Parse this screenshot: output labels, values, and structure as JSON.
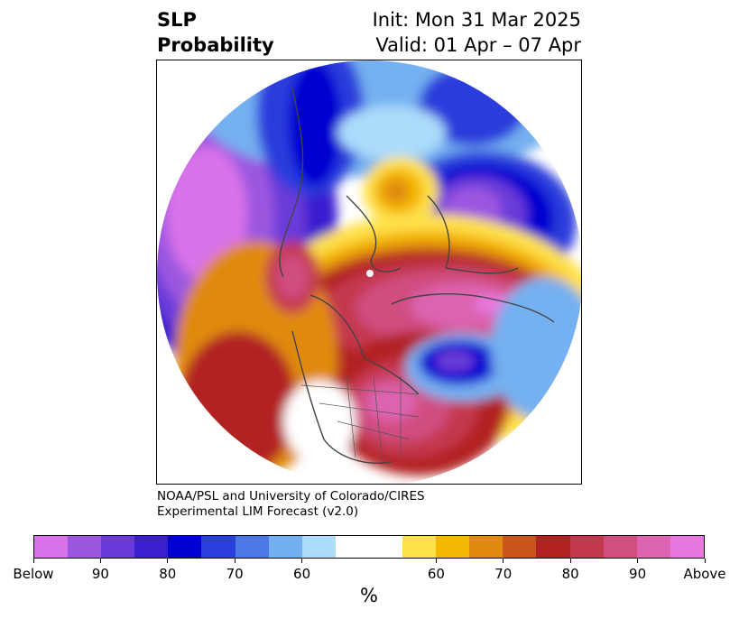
{
  "title": {
    "left_line1": "SLP",
    "left_line2": "Probability",
    "right_line1": "Init: Mon 31 Mar 2025",
    "right_line2": "Valid: 01 Apr – 07 Apr"
  },
  "credit": {
    "line1": "NOAA/PSL and University of Colorado/CIRES",
    "line2": "Experimental LIM Forecast (v2.0)"
  },
  "colorbar": {
    "colors": [
      "#d872e8",
      "#9b56e0",
      "#6a3ad8",
      "#3a1ed0",
      "#0000d0",
      "#2a3edc",
      "#4c78e6",
      "#74b0f0",
      "#acdcfa",
      "#ffffff",
      "#ffffff",
      "#ffe14c",
      "#f4b800",
      "#e08a10",
      "#c8561a",
      "#b22222",
      "#c4384e",
      "#d04e80",
      "#dc64b0",
      "#e878e0"
    ],
    "tick_labels": [
      "Below",
      "90",
      "80",
      "70",
      "60",
      "60",
      "70",
      "80",
      "90",
      "Above"
    ],
    "unit": "%"
  },
  "map": {
    "projection": "north-polar-stereographic",
    "features": [
      "coastlines",
      "country-borders",
      "us-state-borders"
    ],
    "anomalies": [
      {
        "name": "pacific-low-center",
        "category": "below",
        "color": "#d872e8"
      },
      {
        "name": "siberia-low",
        "category": "below",
        "color": "#0000d0"
      },
      {
        "name": "europe-low",
        "category": "below",
        "color": "#9b56e0"
      },
      {
        "name": "arctic-canada-high",
        "category": "above",
        "color": "#dc64b0"
      },
      {
        "name": "central-us-high",
        "category": "above",
        "color": "#dc64b0"
      },
      {
        "name": "north-pacific-high",
        "category": "above",
        "color": "#b22222"
      },
      {
        "name": "north-atlantic-low",
        "category": "below",
        "color": "#2a3edc"
      }
    ]
  }
}
